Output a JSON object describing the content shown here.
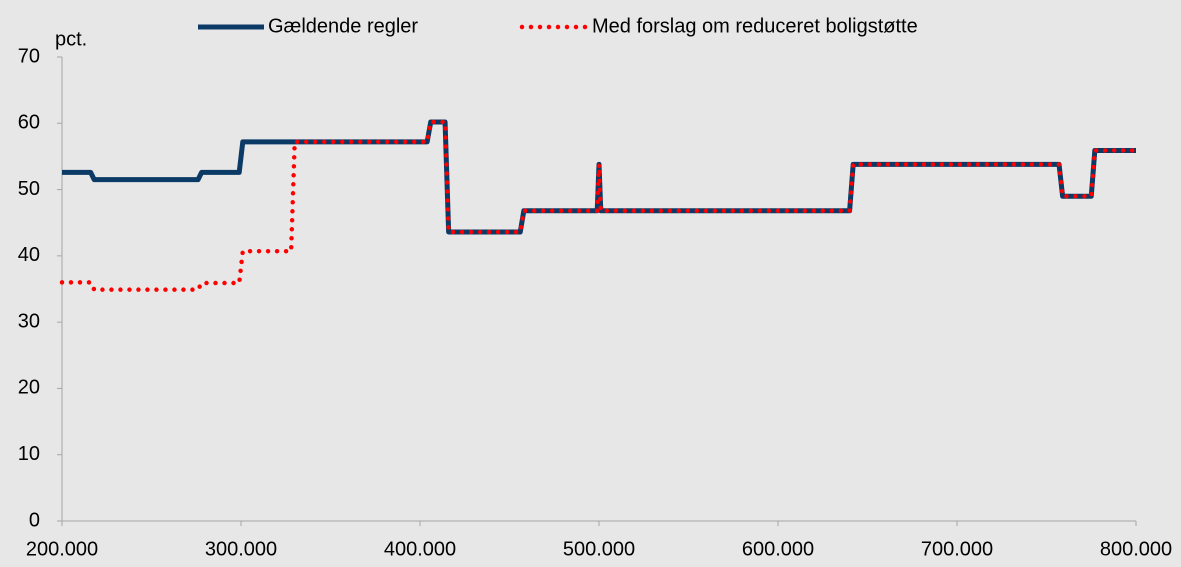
{
  "chart_data": {
    "type": "line",
    "y_label": "pct.",
    "x": [
      200000,
      216000,
      218000,
      276000,
      278000,
      299000,
      301000,
      328000,
      330000,
      404000,
      406000,
      414000,
      416000,
      456000,
      458000,
      497000,
      499000,
      500000,
      501000,
      640000,
      642000,
      757000,
      759000,
      775000,
      777000,
      800000
    ],
    "series": [
      {
        "name": "Gældende regler",
        "color": "#0b3a66",
        "style": "solid",
        "values": [
          52.6,
          52.6,
          51.5,
          51.5,
          52.6,
          52.6,
          57.2,
          57.2,
          57.2,
          57.2,
          60.2,
          60.2,
          43.6,
          43.6,
          46.8,
          46.8,
          46.8,
          53.8,
          46.8,
          46.8,
          53.8,
          53.8,
          49.0,
          49.0,
          55.9,
          55.9
        ]
      },
      {
        "name": "Med forslag om reduceret boligstøtte",
        "color": "#ff0000",
        "style": "dotted",
        "values": [
          36.0,
          36.0,
          34.9,
          34.9,
          35.9,
          35.9,
          40.7,
          40.7,
          57.2,
          57.2,
          60.2,
          60.2,
          43.6,
          43.6,
          46.8,
          46.8,
          46.8,
          53.8,
          46.8,
          46.8,
          53.8,
          53.8,
          49.0,
          49.0,
          55.9,
          55.9
        ]
      }
    ],
    "xlim": [
      200000,
      800000
    ],
    "xticks": [
      {
        "value": 200000,
        "label": "200.000"
      },
      {
        "value": 300000,
        "label": "300.000"
      },
      {
        "value": 400000,
        "label": "400.000"
      },
      {
        "value": 500000,
        "label": "500.000"
      },
      {
        "value": 600000,
        "label": "600.000"
      },
      {
        "value": 700000,
        "label": "700.000"
      },
      {
        "value": 800000,
        "label": "800.000"
      }
    ],
    "ylim": [
      0,
      70
    ],
    "yticks": [
      0,
      10,
      20,
      30,
      40,
      50,
      60,
      70
    ],
    "grid": false,
    "legend": "top"
  }
}
